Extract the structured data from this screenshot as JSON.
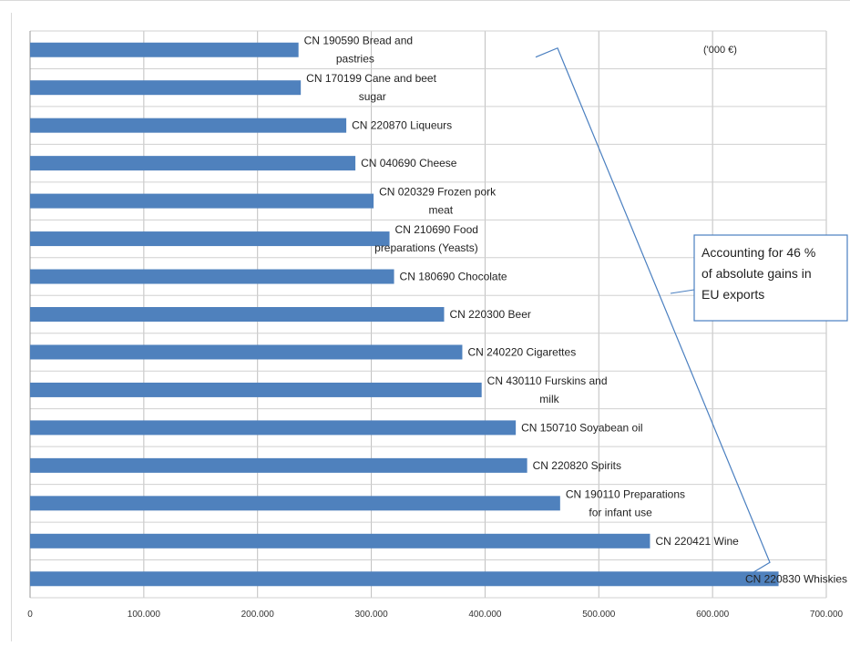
{
  "chart_data": {
    "type": "bar",
    "orientation": "horizontal",
    "unit_label": "('000 €)",
    "categories": [
      [
        "CN 190590 Bread and",
        "pastries"
      ],
      [
        "CN 170199 Cane and beet",
        "sugar"
      ],
      [
        "CN 220870 Liqueurs"
      ],
      [
        "CN 040690 Cheese"
      ],
      [
        "CN 020329 Frozen pork",
        "meat"
      ],
      [
        "CN 210690 Food",
        "preparations (Yeasts)"
      ],
      [
        "CN 180690 Chocolate"
      ],
      [
        "CN 220300 Beer"
      ],
      [
        "CN 240220 Cigarettes"
      ],
      [
        "CN 430110 Furskins and",
        "milk"
      ],
      [
        "CN 150710 Soyabean oil"
      ],
      [
        "CN 220820 Spirits"
      ],
      [
        "CN 190110 Preparations",
        "for infant use"
      ],
      [
        "CN 220421 Wine"
      ],
      [
        "CN 220830 Whiskies"
      ]
    ],
    "values": [
      236000,
      238000,
      278000,
      286000,
      302000,
      316000,
      320000,
      364000,
      380000,
      397000,
      427000,
      437000,
      466000,
      545000,
      658000
    ],
    "xlim": [
      0,
      700000
    ],
    "xticks": [
      "0",
      "100.000",
      "200.000",
      "300.000",
      "400.000",
      "500.000",
      "600.000",
      "700.000"
    ],
    "grid": true,
    "bar_color": "#4f81bd",
    "annotation": {
      "lines": [
        "Accounting for 46 %",
        "of absolute gains in",
        "EU exports"
      ],
      "bracket_from_category": 0,
      "bracket_to_category": 14
    }
  }
}
